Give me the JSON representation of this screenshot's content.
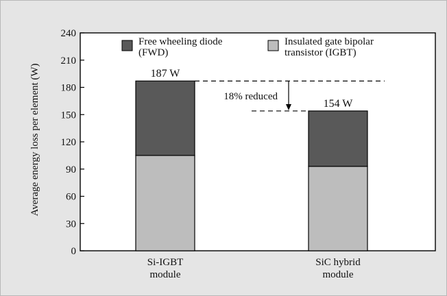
{
  "chart_data": {
    "type": "bar",
    "stacked": true,
    "title": "",
    "xlabel": "",
    "ylabel": "Average energy loss per element (W)",
    "ylim": [
      0,
      240
    ],
    "yticks": [
      0,
      30,
      60,
      90,
      120,
      150,
      180,
      210,
      240
    ],
    "grid": false,
    "legend_position": "top-right, inside plot",
    "categories": [
      {
        "line1": "Si-IGBT",
        "line2": "module"
      },
      {
        "line1": "SiC hybrid",
        "line2": "module"
      }
    ],
    "series": [
      {
        "name_line1": "Insulated gate bipolar",
        "name_line2": "transistor (IGBT)",
        "color": "#bdbdbd",
        "values": [
          105,
          93
        ]
      },
      {
        "name_line1": "Free wheeling diode",
        "name_line2": "(FWD)",
        "color": "#595959",
        "values": [
          82,
          61
        ]
      }
    ],
    "totals": [
      187,
      154
    ],
    "total_labels": [
      "187 W",
      "154 W"
    ],
    "annotation": {
      "text": "18% reduced",
      "from": 187,
      "to": 154
    }
  }
}
